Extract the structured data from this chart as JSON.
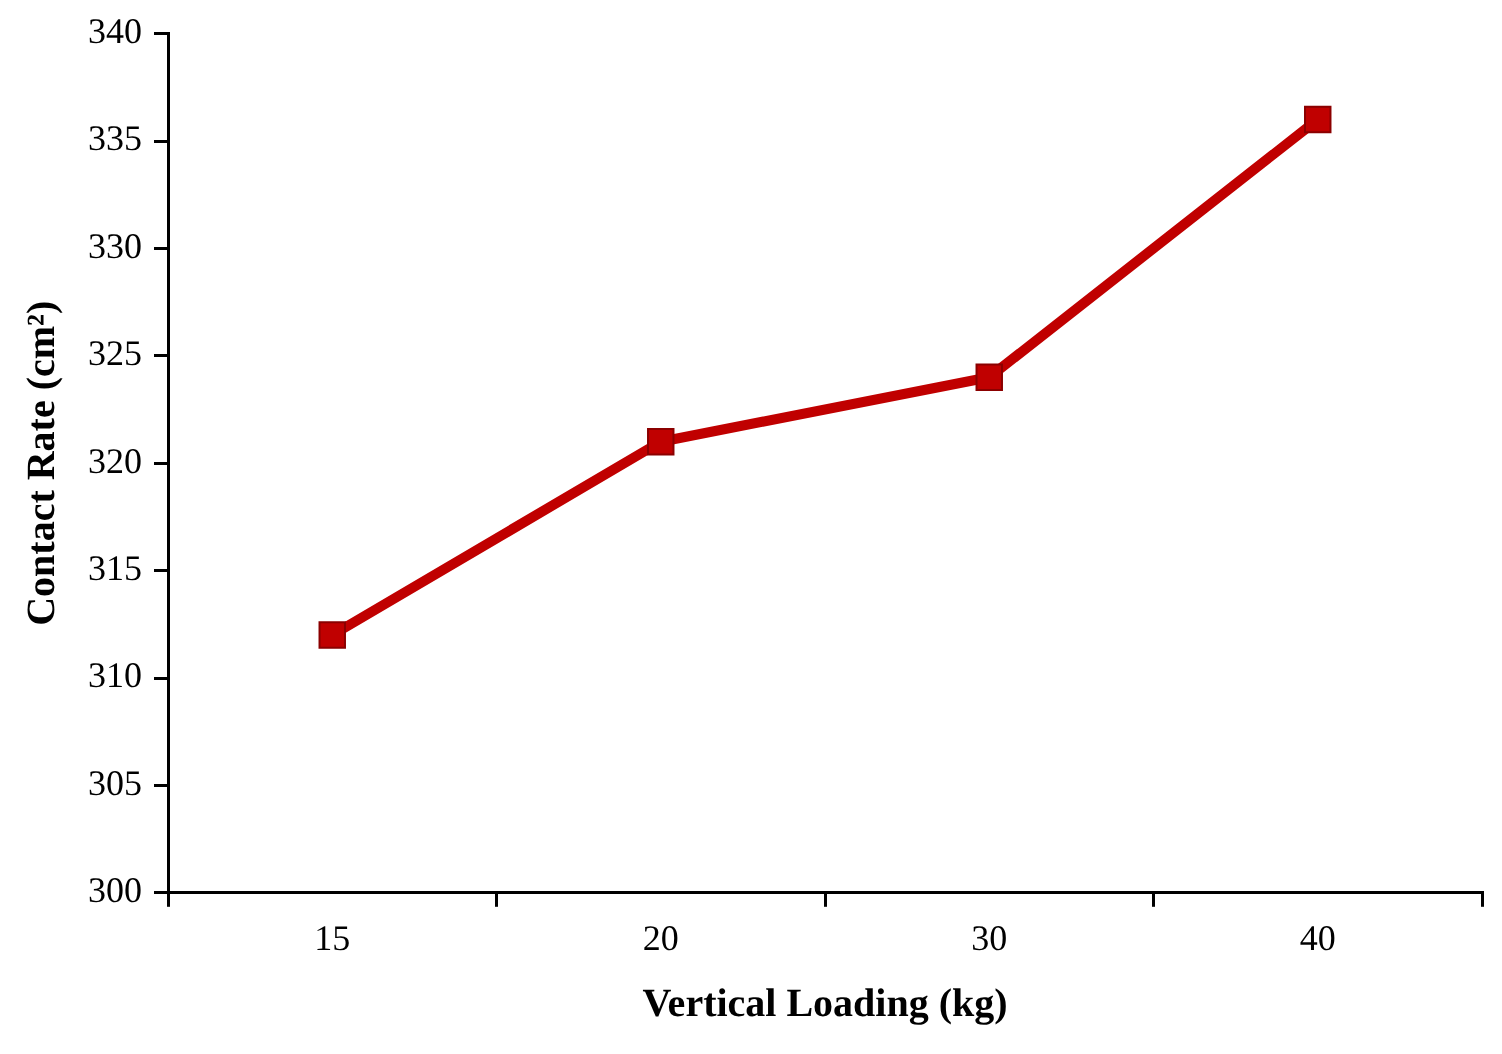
{
  "chart_data": {
    "type": "line",
    "xlabel": "Vertical Loading (kg)",
    "ylabel": "Contact Rate (cm²)",
    "categories": [
      "15",
      "20",
      "30",
      "40"
    ],
    "series": [
      {
        "color": "#c00000",
        "values": [
          312,
          321,
          324,
          336
        ]
      }
    ],
    "ylim": [
      300,
      340
    ],
    "yticks": [
      300,
      305,
      310,
      315,
      320,
      325,
      330,
      335,
      340
    ],
    "grid": false,
    "legend": false,
    "marker": "square",
    "line_style": "solid"
  }
}
